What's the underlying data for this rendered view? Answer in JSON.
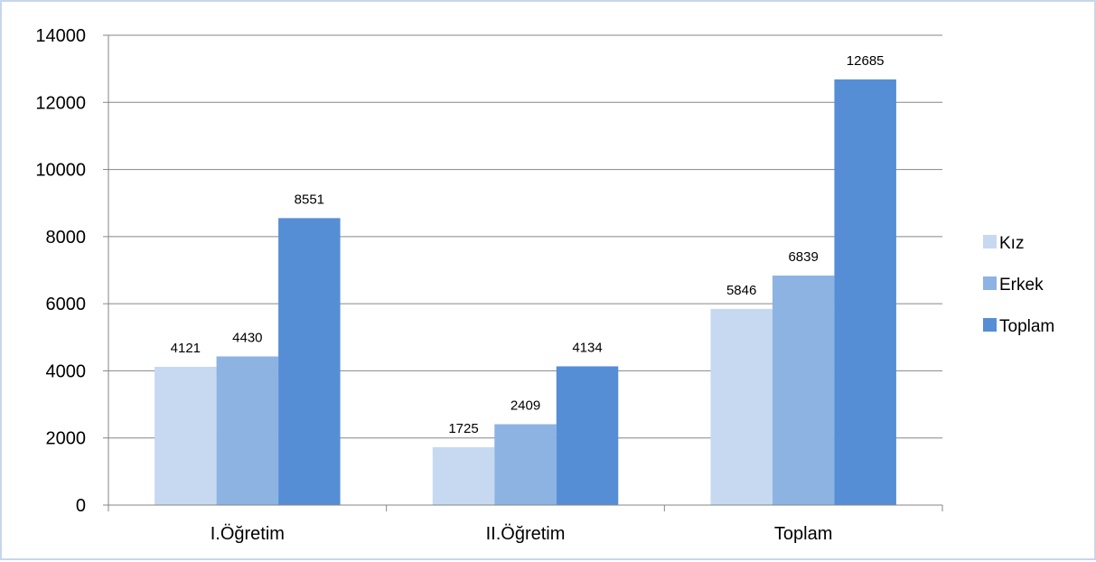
{
  "chart_data": {
    "type": "bar",
    "categories": [
      "I.Öğretim",
      "II.Öğretim",
      "Toplam"
    ],
    "series": [
      {
        "name": "Kız",
        "values": [
          4121,
          1725,
          5846
        ],
        "color": "#c6d9f1"
      },
      {
        "name": "Erkek",
        "values": [
          4430,
          2409,
          6839
        ],
        "color": "#8db3e2"
      },
      {
        "name": "Toplam",
        "values": [
          8551,
          4134,
          12685
        ],
        "color": "#558ed5"
      }
    ],
    "title": "",
    "xlabel": "",
    "ylabel": "",
    "ylim": [
      0,
      14000
    ],
    "yticks": [
      0,
      2000,
      4000,
      6000,
      8000,
      10000,
      12000,
      14000
    ],
    "grid": true,
    "data_labels": true,
    "legend_position": "right"
  }
}
